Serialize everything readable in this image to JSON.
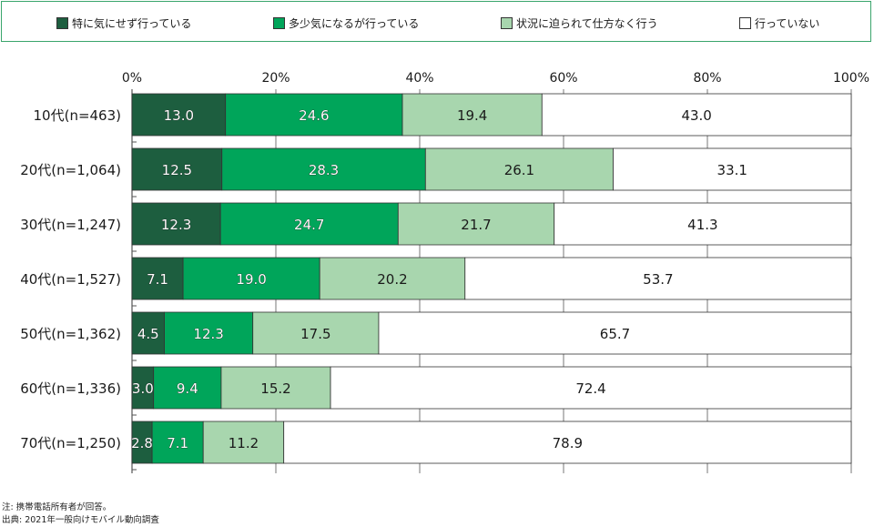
{
  "legend": [
    {
      "label": "特に気にせず行っている",
      "color": "#1d5e3f"
    },
    {
      "label": "多少気になるが行っている",
      "color": "#00a55a"
    },
    {
      "label": "状況に迫られて仕方なく行う",
      "color": "#a8d6ae"
    },
    {
      "label": "行っていない",
      "color": "#ffffff"
    }
  ],
  "chart_data": {
    "type": "bar",
    "orientation": "horizontal-stacked-100",
    "categories": [
      "10代(n=463)",
      "20代(n=1,064)",
      "30代(n=1,247)",
      "40代(n=1,527)",
      "50代(n=1,362)",
      "60代(n=1,336)",
      "70代(n=1,250)"
    ],
    "series": [
      {
        "name": "特に気にせず行っている",
        "color": "#1d5e3f",
        "values": [
          13.0,
          12.5,
          12.3,
          7.1,
          4.5,
          3.0,
          2.8
        ]
      },
      {
        "name": "多少気になるが行っている",
        "color": "#00a55a",
        "values": [
          24.6,
          28.3,
          24.7,
          19.0,
          12.3,
          9.4,
          7.1
        ]
      },
      {
        "name": "状況に迫られて仕方なく行う",
        "color": "#a8d6ae",
        "values": [
          19.4,
          26.1,
          21.7,
          20.2,
          17.5,
          15.2,
          11.2
        ]
      },
      {
        "name": "行っていない",
        "color": "#ffffff",
        "values": [
          43.0,
          33.1,
          41.3,
          53.7,
          65.7,
          72.4,
          78.9
        ]
      }
    ],
    "xlim": [
      0,
      100
    ],
    "xticks": [
      "0%",
      "20%",
      "40%",
      "60%",
      "80%",
      "100%"
    ],
    "grid": true,
    "legend_position": "top"
  },
  "notes": {
    "note": "注: 携帯電話所有者が回答。",
    "source": "出典: 2021年一般向けモバイル動向調査"
  }
}
